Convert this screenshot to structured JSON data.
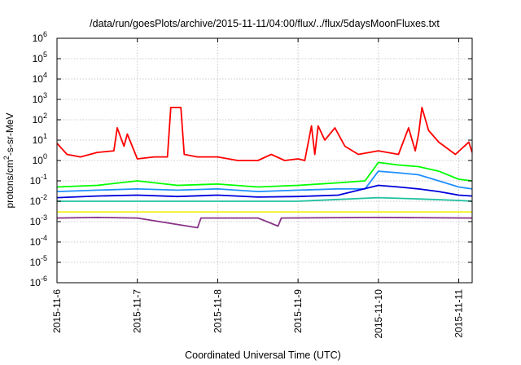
{
  "chart_data": {
    "type": "line",
    "title": "/data/run/goesPlots/archive/2015-11-11/04:00/flux/../flux/5daysMoonFluxes.txt",
    "xlabel": "Coordinated Universal Time (UTC)",
    "ylabel": "protons/cm²-s-sr-MeV",
    "ylabel_base": "protons/cm",
    "ylabel_sup": "2",
    "ylabel_tail": "-s-sr-MeV",
    "yscale": "log",
    "ylim_exp": [
      -6,
      6
    ],
    "y_tick_labels": [
      {
        "base": "10",
        "exp": "-6"
      },
      {
        "base": "10",
        "exp": "-5"
      },
      {
        "base": "10",
        "exp": "-4"
      },
      {
        "base": "10",
        "exp": "-3"
      },
      {
        "base": "10",
        "exp": "-2"
      },
      {
        "base": "10",
        "exp": "-1"
      },
      {
        "base": "10",
        "exp": "0"
      },
      {
        "base": "10",
        "exp": "1"
      },
      {
        "base": "10",
        "exp": "2"
      },
      {
        "base": "10",
        "exp": "3"
      },
      {
        "base": "10",
        "exp": "4"
      },
      {
        "base": "10",
        "exp": "5"
      },
      {
        "base": "10",
        "exp": "6"
      }
    ],
    "x_tick_labels": [
      "2015-11-6",
      "2015-11-7",
      "2015-11-8",
      "2015-11-9",
      "2015-11-10",
      "2015-11-11"
    ],
    "xlim": [
      "2015-11-06 00:00",
      "2015-11-11 04:00"
    ],
    "grid": true,
    "series": [
      {
        "color": "#ff0000",
        "points": [
          [
            "2015-11-06 00:00",
            7
          ],
          [
            "2015-11-06 03:00",
            2
          ],
          [
            "2015-11-06 07:00",
            1.5
          ],
          [
            "2015-11-06 12:00",
            2.5
          ],
          [
            "2015-11-06 17:00",
            3
          ],
          [
            "2015-11-06 18:00",
            40
          ],
          [
            "2015-11-06 20:00",
            5
          ],
          [
            "2015-11-06 21:00",
            20
          ],
          [
            "2015-11-07 00:00",
            1.2
          ],
          [
            "2015-11-07 05:00",
            1.5
          ],
          [
            "2015-11-07 09:00",
            1.5
          ],
          [
            "2015-11-07 10:00",
            400
          ],
          [
            "2015-11-07 13:00",
            400
          ],
          [
            "2015-11-07 14:00",
            2
          ],
          [
            "2015-11-07 18:00",
            1.5
          ],
          [
            "2015-11-08 00:00",
            1.5
          ],
          [
            "2015-11-08 06:00",
            1
          ],
          [
            "2015-11-08 12:00",
            1
          ],
          [
            "2015-11-08 16:00",
            2
          ],
          [
            "2015-11-08 20:00",
            1
          ],
          [
            "2015-11-09 00:00",
            1.2
          ],
          [
            "2015-11-09 02:00",
            1
          ],
          [
            "2015-11-09 04:00",
            50
          ],
          [
            "2015-11-09 05:00",
            2
          ],
          [
            "2015-11-09 06:00",
            50
          ],
          [
            "2015-11-09 08:00",
            10
          ],
          [
            "2015-11-09 11:00",
            40
          ],
          [
            "2015-11-09 14:00",
            5
          ],
          [
            "2015-11-09 18:00",
            2
          ],
          [
            "2015-11-10 00:00",
            3
          ],
          [
            "2015-11-10 06:00",
            2
          ],
          [
            "2015-11-10 09:00",
            40
          ],
          [
            "2015-11-10 11:00",
            3
          ],
          [
            "2015-11-10 12:00",
            20
          ],
          [
            "2015-11-10 13:00",
            400
          ],
          [
            "2015-11-10 15:00",
            30
          ],
          [
            "2015-11-10 18:00",
            8
          ],
          [
            "2015-11-10 23:00",
            2
          ],
          [
            "2015-11-11 03:00",
            8
          ],
          [
            "2015-11-11 04:00",
            2.5
          ]
        ]
      },
      {
        "color": "#00ff00",
        "points": [
          [
            "2015-11-06 00:00",
            0.05
          ],
          [
            "2015-11-06 12:00",
            0.06
          ],
          [
            "2015-11-07 00:00",
            0.1
          ],
          [
            "2015-11-07 12:00",
            0.06
          ],
          [
            "2015-11-08 00:00",
            0.07
          ],
          [
            "2015-11-08 12:00",
            0.05
          ],
          [
            "2015-11-09 00:00",
            0.06
          ],
          [
            "2015-11-09 12:00",
            0.08
          ],
          [
            "2015-11-09 20:00",
            0.1
          ],
          [
            "2015-11-10 00:00",
            0.8
          ],
          [
            "2015-11-10 06:00",
            0.6
          ],
          [
            "2015-11-10 12:00",
            0.5
          ],
          [
            "2015-11-10 18:00",
            0.3
          ],
          [
            "2015-11-11 00:00",
            0.12
          ],
          [
            "2015-11-11 04:00",
            0.1
          ]
        ]
      },
      {
        "color": "#1e90ff",
        "points": [
          [
            "2015-11-06 00:00",
            0.03
          ],
          [
            "2015-11-06 12:00",
            0.035
          ],
          [
            "2015-11-07 00:00",
            0.04
          ],
          [
            "2015-11-07 12:00",
            0.035
          ],
          [
            "2015-11-08 00:00",
            0.04
          ],
          [
            "2015-11-08 12:00",
            0.03
          ],
          [
            "2015-11-09 00:00",
            0.035
          ],
          [
            "2015-11-09 12:00",
            0.04
          ],
          [
            "2015-11-09 20:00",
            0.04
          ],
          [
            "2015-11-10 00:00",
            0.3
          ],
          [
            "2015-11-10 06:00",
            0.25
          ],
          [
            "2015-11-10 12:00",
            0.2
          ],
          [
            "2015-11-10 18:00",
            0.1
          ],
          [
            "2015-11-11 00:00",
            0.05
          ],
          [
            "2015-11-11 04:00",
            0.04
          ]
        ]
      },
      {
        "color": "#0000dd",
        "points": [
          [
            "2015-11-06 00:00",
            0.015
          ],
          [
            "2015-11-06 12:00",
            0.018
          ],
          [
            "2015-11-07 00:00",
            0.02
          ],
          [
            "2015-11-07 12:00",
            0.017
          ],
          [
            "2015-11-08 00:00",
            0.02
          ],
          [
            "2015-11-08 12:00",
            0.016
          ],
          [
            "2015-11-09 00:00",
            0.017
          ],
          [
            "2015-11-09 12:00",
            0.02
          ],
          [
            "2015-11-10 00:00",
            0.06
          ],
          [
            "2015-11-10 06:00",
            0.05
          ],
          [
            "2015-11-10 12:00",
            0.04
          ],
          [
            "2015-11-10 18:00",
            0.03
          ],
          [
            "2015-11-11 00:00",
            0.02
          ],
          [
            "2015-11-11 04:00",
            0.018
          ]
        ]
      },
      {
        "color": "#20c0a0",
        "points": [
          [
            "2015-11-06 00:00",
            0.01
          ],
          [
            "2015-11-07 00:00",
            0.01
          ],
          [
            "2015-11-08 00:00",
            0.01
          ],
          [
            "2015-11-09 00:00",
            0.01
          ],
          [
            "2015-11-10 00:00",
            0.015
          ],
          [
            "2015-11-10 12:00",
            0.013
          ],
          [
            "2015-11-11 00:00",
            0.011
          ],
          [
            "2015-11-11 04:00",
            0.01
          ]
        ]
      },
      {
        "color": "#f0f020",
        "points": [
          [
            "2015-11-06 00:00",
            0.003
          ],
          [
            "2015-11-07 00:00",
            0.003
          ],
          [
            "2015-11-08 00:00",
            0.003
          ],
          [
            "2015-11-09 00:00",
            0.003
          ],
          [
            "2015-11-10 00:00",
            0.003
          ],
          [
            "2015-11-11 04:00",
            0.003
          ]
        ]
      },
      {
        "color": "#883388",
        "points": [
          [
            "2015-11-06 00:00",
            0.0015
          ],
          [
            "2015-11-06 12:00",
            0.0016
          ],
          [
            "2015-11-07 00:00",
            0.0015
          ],
          [
            "2015-11-07 18:00",
            0.0005
          ],
          [
            "2015-11-07 19:00",
            0.0015
          ],
          [
            "2015-11-08 12:00",
            0.0015
          ],
          [
            "2015-11-08 18:00",
            0.0006
          ],
          [
            "2015-11-08 19:00",
            0.0015
          ],
          [
            "2015-11-10 00:00",
            0.0016
          ],
          [
            "2015-11-11 04:00",
            0.0015
          ]
        ]
      }
    ]
  }
}
